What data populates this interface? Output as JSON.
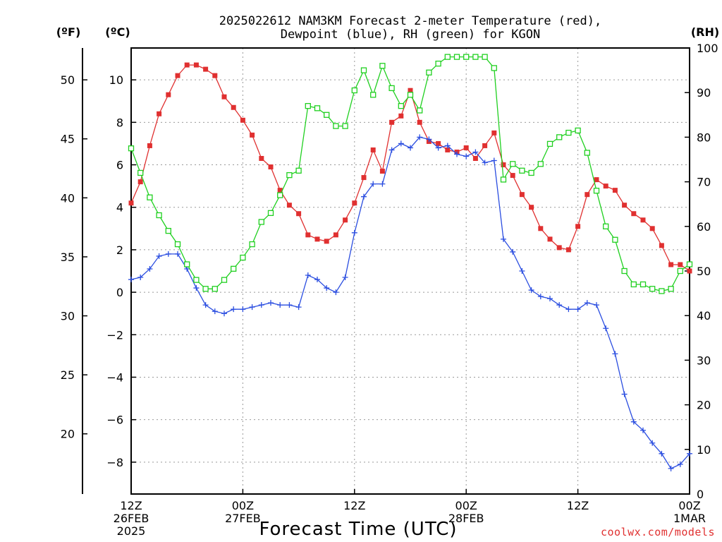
{
  "chart_data": {
    "type": "line",
    "title_line1": "2025022612 NAM3KM Forecast 2-meter Temperature (red),",
    "title_line2": "Dewpoint (blue), RH (green) for KGON",
    "unit_f": "(ºF)",
    "unit_c": "(ºC)",
    "unit_rh": "(RH)",
    "xlabel": "Forecast Time (UTC)",
    "credit": "coolwx.com/models",
    "grid": true,
    "ylim_c": [
      -9.5,
      11.5
    ],
    "ylim_rh": [
      0,
      100
    ],
    "xlim_h": [
      0,
      60
    ],
    "left_ticks_f": [
      "50",
      "45",
      "40",
      "35",
      "30",
      "25",
      "20"
    ],
    "left_ticks_c": [
      "10",
      "8",
      "6",
      "4",
      "2",
      "0",
      "−2",
      "−4",
      "−6",
      "−8"
    ],
    "right_ticks_rh": [
      "100",
      "90",
      "80",
      "70",
      "60",
      "50",
      "40",
      "30",
      "20",
      "10",
      "0"
    ],
    "x_ticks": [
      {
        "h": 0,
        "l1": "12Z",
        "l2": "26FEB",
        "l3": "2025"
      },
      {
        "h": 12,
        "l1": "00Z",
        "l2": "27FEB",
        "l3": ""
      },
      {
        "h": 24,
        "l1": "12Z",
        "l2": "",
        "l3": ""
      },
      {
        "h": 36,
        "l1": "00Z",
        "l2": "28FEB",
        "l3": ""
      },
      {
        "h": 48,
        "l1": "12Z",
        "l2": "",
        "l3": ""
      },
      {
        "h": 60,
        "l1": "00Z",
        "l2": "1MAR",
        "l3": ""
      }
    ],
    "series": [
      {
        "name": "Temperature",
        "color": "#e03030",
        "marker": "filled-square",
        "x": [
          0,
          1,
          2,
          3,
          4,
          5,
          6,
          7,
          8,
          9,
          10,
          11,
          12,
          13,
          14,
          15,
          16,
          17,
          18,
          19,
          20,
          21,
          22,
          23,
          24,
          25,
          26,
          27,
          28,
          29,
          30,
          31,
          32,
          33,
          34,
          35,
          36,
          37,
          38,
          39,
          40,
          41,
          42,
          43,
          44,
          45,
          46,
          47,
          48,
          49,
          50,
          51,
          52,
          53,
          54,
          55,
          56,
          57,
          58,
          59,
          60
        ],
        "values": [
          4.2,
          5.2,
          6.9,
          8.4,
          9.3,
          10.2,
          10.7,
          10.7,
          10.5,
          10.2,
          9.2,
          8.7,
          8.1,
          7.4,
          6.3,
          5.9,
          4.8,
          4.1,
          3.7,
          2.7,
          2.5,
          2.4,
          2.7,
          3.4,
          4.2,
          5.4,
          6.7,
          5.7,
          8.0,
          8.3,
          9.5,
          8.0,
          7.1,
          7.0,
          6.7,
          6.6,
          6.8,
          6.3,
          6.9,
          7.5,
          6.0,
          5.5,
          4.6,
          4.0,
          3.0,
          2.5,
          2.1,
          2.0,
          3.1,
          4.6,
          5.3,
          5.0,
          4.8,
          4.1,
          3.7,
          3.4,
          3.0,
          2.2,
          1.3,
          1.3,
          1.0
        ]
      },
      {
        "name": "Dewpoint",
        "color": "#2a4de0",
        "marker": "plus",
        "x": [
          0,
          1,
          2,
          3,
          4,
          5,
          6,
          7,
          8,
          9,
          10,
          11,
          12,
          13,
          14,
          15,
          16,
          17,
          18,
          19,
          20,
          21,
          22,
          23,
          24,
          25,
          26,
          27,
          28,
          29,
          30,
          31,
          32,
          33,
          34,
          35,
          36,
          37,
          38,
          39,
          40,
          41,
          42,
          43,
          44,
          45,
          46,
          47,
          48,
          49,
          50,
          51,
          52,
          53,
          54,
          55,
          56,
          57,
          58,
          59,
          60
        ],
        "values": [
          0.6,
          0.7,
          1.1,
          1.7,
          1.8,
          1.8,
          1.1,
          0.2,
          -0.6,
          -0.9,
          -1.0,
          -0.8,
          -0.8,
          -0.7,
          -0.6,
          -0.5,
          -0.6,
          -0.6,
          -0.7,
          0.8,
          0.6,
          0.2,
          0.0,
          0.7,
          2.8,
          4.5,
          5.1,
          5.1,
          6.7,
          7.0,
          6.8,
          7.3,
          7.2,
          6.8,
          6.9,
          6.5,
          6.4,
          6.6,
          6.1,
          6.2,
          2.5,
          1.9,
          1.0,
          0.1,
          -0.2,
          -0.3,
          -0.6,
          -0.8,
          -0.8,
          -0.5,
          -0.6,
          -1.7,
          -2.9,
          -4.8,
          -6.1,
          -6.5,
          -7.1,
          -7.6,
          -8.3,
          -8.1,
          -7.6
        ]
      },
      {
        "name": "RH",
        "color": "#20d020",
        "marker": "open-square",
        "axis": "right",
        "x": [
          0,
          1,
          2,
          3,
          4,
          5,
          6,
          7,
          8,
          9,
          10,
          11,
          12,
          13,
          14,
          15,
          16,
          17,
          18,
          19,
          20,
          21,
          22,
          23,
          24,
          25,
          26,
          27,
          28,
          29,
          30,
          31,
          32,
          33,
          34,
          35,
          36,
          37,
          38,
          39,
          40,
          41,
          42,
          43,
          44,
          45,
          46,
          47,
          48,
          49,
          50,
          51,
          52,
          53,
          54,
          55,
          56,
          57,
          58,
          59,
          60
        ],
        "values": [
          77.5,
          72,
          66.5,
          62.5,
          59,
          56,
          51.5,
          48,
          46,
          46,
          48,
          50.5,
          53,
          56,
          61,
          63,
          67,
          71.5,
          72.5,
          87,
          86.5,
          85,
          82.5,
          82.5,
          90.5,
          95,
          89.5,
          96,
          91,
          87,
          89.5,
          86,
          94.5,
          96.5,
          98,
          98,
          98,
          98,
          98,
          95.5,
          70.5,
          74,
          72.5,
          72,
          74,
          78.5,
          80,
          81,
          81.5,
          76.5,
          68,
          60,
          57,
          50,
          47,
          47,
          46,
          45.5,
          46,
          50,
          51.5
        ]
      }
    ]
  }
}
